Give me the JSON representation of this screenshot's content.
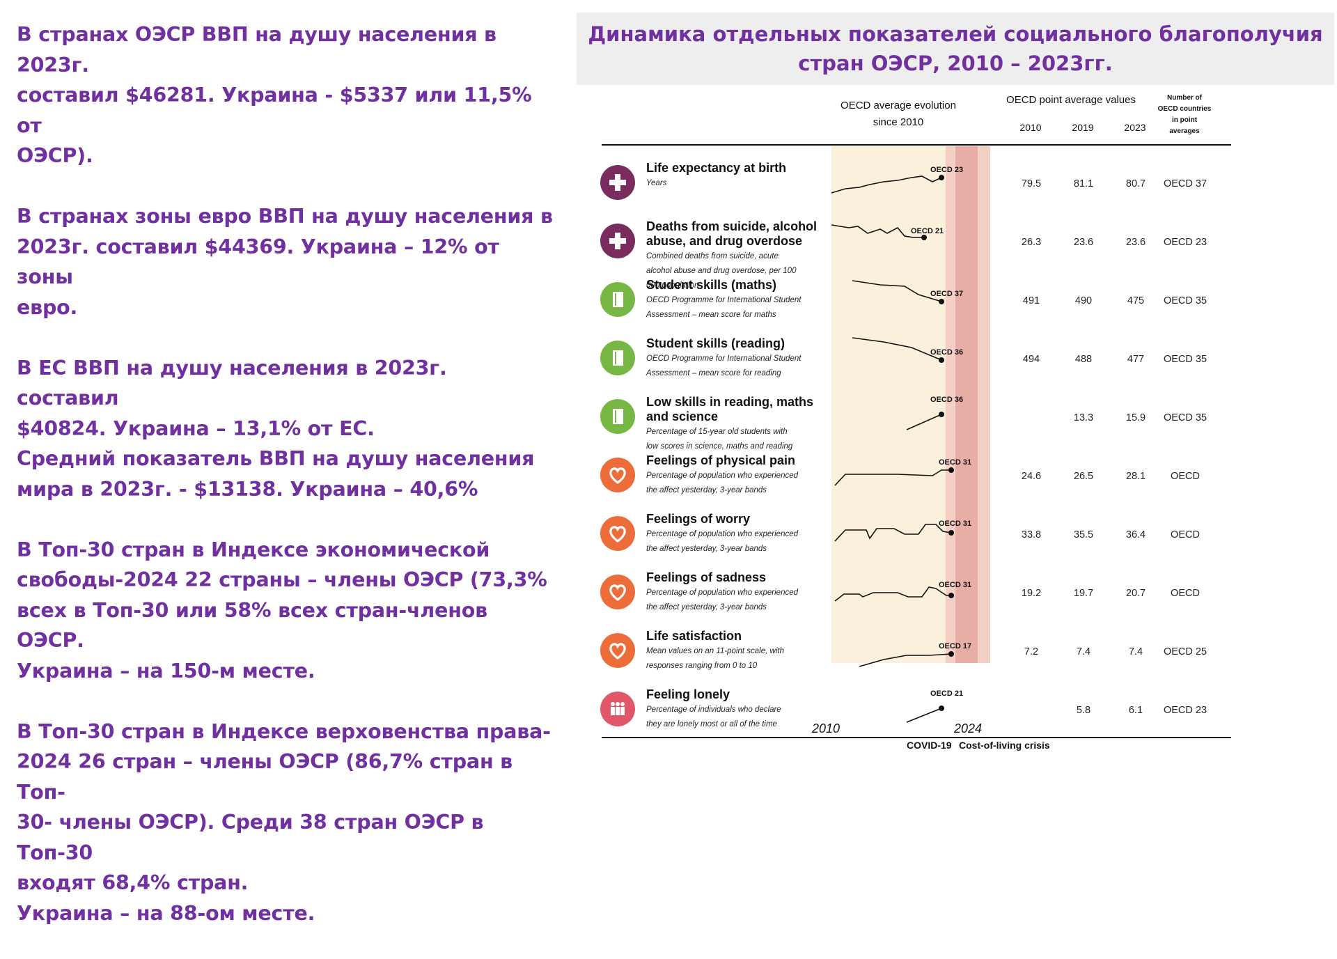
{
  "left_text": {
    "p1": [
      "В странах ОЭСР ВВП на душу населения в 2023г.",
      "составил $46281. Украина - $5337 или 11,5% от",
      "ОЭСР)."
    ],
    "p2": [
      "В странах зоны евро ВВП на душу населения в",
      "2023г. составил $44369. Украина – 12% от зоны",
      "евро."
    ],
    "p3": [
      "В ЕС ВВП на душу населения в 2023г. составил",
      "$40824. Украина – 13,1% от ЕС.",
      "Средний показатель ВВП на душу населения",
      "мира в 2023г. - $13138. Украина – 40,6%"
    ],
    "p4": [
      "В Топ-30 стран в Индексе экономической",
      "свободы-2024 22 страны – члены ОЭСР (73,3%",
      "всех в Топ-30 или 58% всех стран-членов ОЭСР.",
      "Украина – на 150-м месте."
    ],
    "p5": [
      "В Топ-30 стран в Индексе верховенства права-",
      "2024 26 стран – члены ОЭСР (86,7% стран в Топ-",
      "30- члены ОЭСР). Среди 38 стран ОЭСР в Топ-30",
      "входят 68,4% стран.",
      "Украина – на 88-ом месте."
    ]
  },
  "title": [
    "Динамика отдельных показателей социального благополучия",
    "стран ОЭСР, 2010 – 2023гг."
  ],
  "figure": {
    "header_evolution": [
      "OECD average evolution",
      "since 2010"
    ],
    "header_points": "OECD point average values",
    "header_years": [
      "2010",
      "2019",
      "2023"
    ],
    "header_count": [
      "Number of",
      "OECD countries",
      "in point",
      "averages"
    ],
    "axis_start": "2010",
    "axis_end": "2024",
    "footer_covid": "COVID-19",
    "footer_col": "Cost-of-living crisis",
    "colors": {
      "band_light": "#faf0dc",
      "band_mid": "#f4cfc6",
      "band_dark": "#e8aea6",
      "icon_health": "#7b2c5e",
      "icon_skills": "#76b843",
      "icon_feel": "#ec6c3a",
      "icon_lonely": "#e2566a",
      "text_purple": "#7030a0"
    },
    "rows": [
      {
        "icon": "plus-icon",
        "title": [
          "Life expectancy at birth"
        ],
        "desc": [
          "Years"
        ],
        "tag": "OECD 23",
        "v2010": "79.5",
        "v2019": "81.1",
        "v2023": "80.7",
        "count": "OECD 37"
      },
      {
        "icon": "plus-icon",
        "title": [
          "Deaths from suicide, alcohol",
          "abuse, and drug overdose"
        ],
        "desc": [
          "Combined deaths from suicide, acute",
          "alcohol abuse and drug overdose, per 100",
          "000 population"
        ],
        "tag": "OECD 21",
        "v2010": "26.3",
        "v2019": "23.6",
        "v2023": "23.6",
        "count": "OECD 23"
      },
      {
        "icon": "book-icon",
        "title": [
          "Student skills (maths)"
        ],
        "desc": [
          "OECD Programme for International Student",
          "Assessment – mean score for maths"
        ],
        "tag": "OECD 37",
        "v2010": "491",
        "v2019": "490",
        "v2023": "475",
        "count": "OECD 35"
      },
      {
        "icon": "book-icon",
        "title": [
          "Student skills (reading)"
        ],
        "desc": [
          "OECD Programme for International Student",
          "Assessment – mean score for reading"
        ],
        "tag": "OECD 36",
        "v2010": "494",
        "v2019": "488",
        "v2023": "477",
        "count": "OECD 35"
      },
      {
        "icon": "book-icon",
        "title": [
          "Low skills in reading, maths",
          "and science"
        ],
        "desc": [
          "Percentage of 15-year old students with",
          "low scores in science, maths and reading"
        ],
        "tag": "OECD 36",
        "v2010": "",
        "v2019": "13.3",
        "v2023": "15.9",
        "count": "OECD 35"
      },
      {
        "icon": "heart-icon",
        "title": [
          "Feelings of physical pain"
        ],
        "desc": [
          "Percentage of population who experienced",
          "the affect yesterday, 3-year bands"
        ],
        "tag": "OECD 31",
        "v2010": "24.6",
        "v2019": "26.5",
        "v2023": "28.1",
        "count": "OECD"
      },
      {
        "icon": "heart-icon",
        "title": [
          "Feelings of worry"
        ],
        "desc": [
          "Percentage of population who experienced",
          "the affect yesterday, 3-year bands"
        ],
        "tag": "OECD 31",
        "v2010": "33.8",
        "v2019": "35.5",
        "v2023": "36.4",
        "count": "OECD"
      },
      {
        "icon": "heart-icon",
        "title": [
          "Feelings of sadness"
        ],
        "desc": [
          "Percentage of population who experienced",
          "the affect yesterday, 3-year bands"
        ],
        "tag": "OECD 31",
        "v2010": "19.2",
        "v2019": "19.7",
        "v2023": "20.7",
        "count": "OECD"
      },
      {
        "icon": "heart-icon",
        "title": [
          "Life satisfaction"
        ],
        "desc": [
          "Mean values on an 11-point scale, with",
          "responses ranging from 0 to 10"
        ],
        "tag": "OECD 17",
        "v2010": "7.2",
        "v2019": "7.4",
        "v2023": "7.4",
        "count": "OECD 25"
      },
      {
        "icon": "people-icon",
        "title": [
          "Feeling lonely"
        ],
        "desc": [
          "Percentage of individuals who declare",
          "they are lonely most or all of the time"
        ],
        "tag": "OECD 21",
        "v2010": "",
        "v2019": "5.8",
        "v2023": "6.1",
        "count": "OECD 23"
      }
    ]
  }
}
